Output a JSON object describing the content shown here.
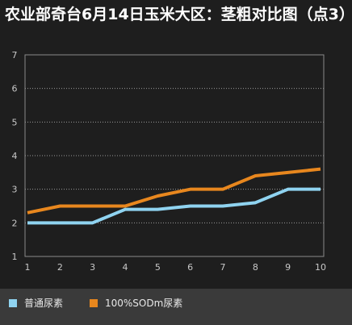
{
  "chart_data": {
    "type": "line",
    "title": "农业部奇台6月14日玉米大区：茎粗对比图（点3）",
    "x": [
      1,
      2,
      3,
      4,
      5,
      6,
      7,
      8,
      9,
      10
    ],
    "ylim": [
      1,
      7
    ],
    "yticks": [
      1,
      2,
      3,
      4,
      5,
      6,
      7
    ],
    "grid": true,
    "legend_position": "bottom",
    "series": [
      {
        "name": "普通尿素",
        "color": "#8fd3f0",
        "values": [
          2.0,
          2.0,
          2.0,
          2.4,
          2.4,
          2.5,
          2.5,
          2.6,
          3.0,
          3.0
        ]
      },
      {
        "name": "100%SODm尿素",
        "color": "#e8871e",
        "values": [
          2.3,
          2.5,
          2.5,
          2.5,
          2.8,
          3.0,
          3.0,
          3.4,
          3.5,
          3.6
        ]
      }
    ]
  }
}
